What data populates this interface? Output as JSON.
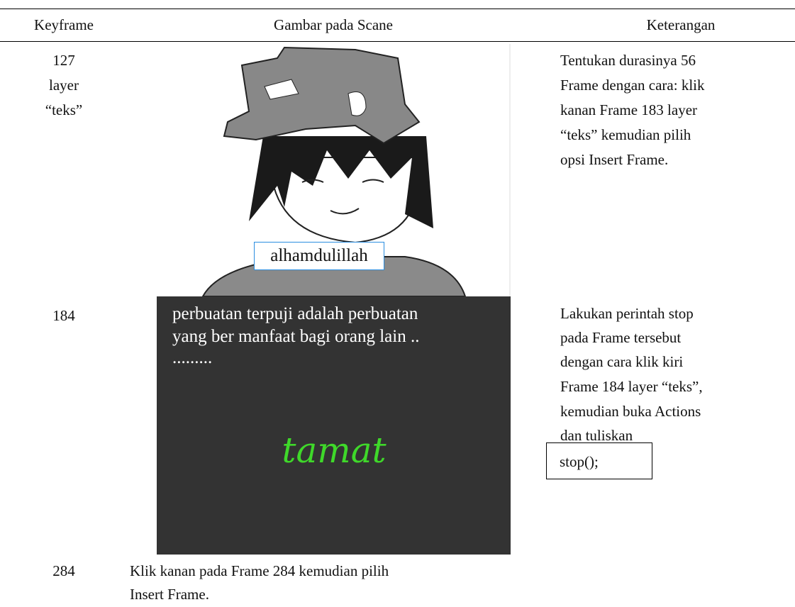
{
  "table": {
    "header": [
      "Keyframe",
      "Gambar pada Scane",
      "Keterangan"
    ],
    "rows": [
      {
        "keyframe": [
          "127",
          "layer",
          "“teks”"
        ],
        "image": {
          "caption": "alhamdulillah"
        },
        "note": [
          "Tentukan durasinya 56",
          "Frame dengan cara: klik",
          "kanan Frame 183 layer",
          "“teks” kemudian pilih",
          "opsi Insert Frame."
        ]
      },
      {
        "keyframe": [
          "184"
        ],
        "image": {
          "text": [
            "perbuatan terpuji adalah perbuatan",
            "yang ber manfaat bagi orang lain ..",
            "........."
          ],
          "title": "tamat"
        },
        "note": [
          "Lakukan perintah stop",
          "pada Frame tersebut",
          "dengan cara klik kiri",
          "Frame 184 layer “teks”,",
          "kemudian buka Actions",
          "dan tuliskan"
        ],
        "code": "stop();"
      },
      {
        "keyframe": [
          "284"
        ],
        "note": [
          "Klik kanan pada Frame 284 kemudian pilih",
          "Insert Frame."
        ]
      }
    ]
  }
}
